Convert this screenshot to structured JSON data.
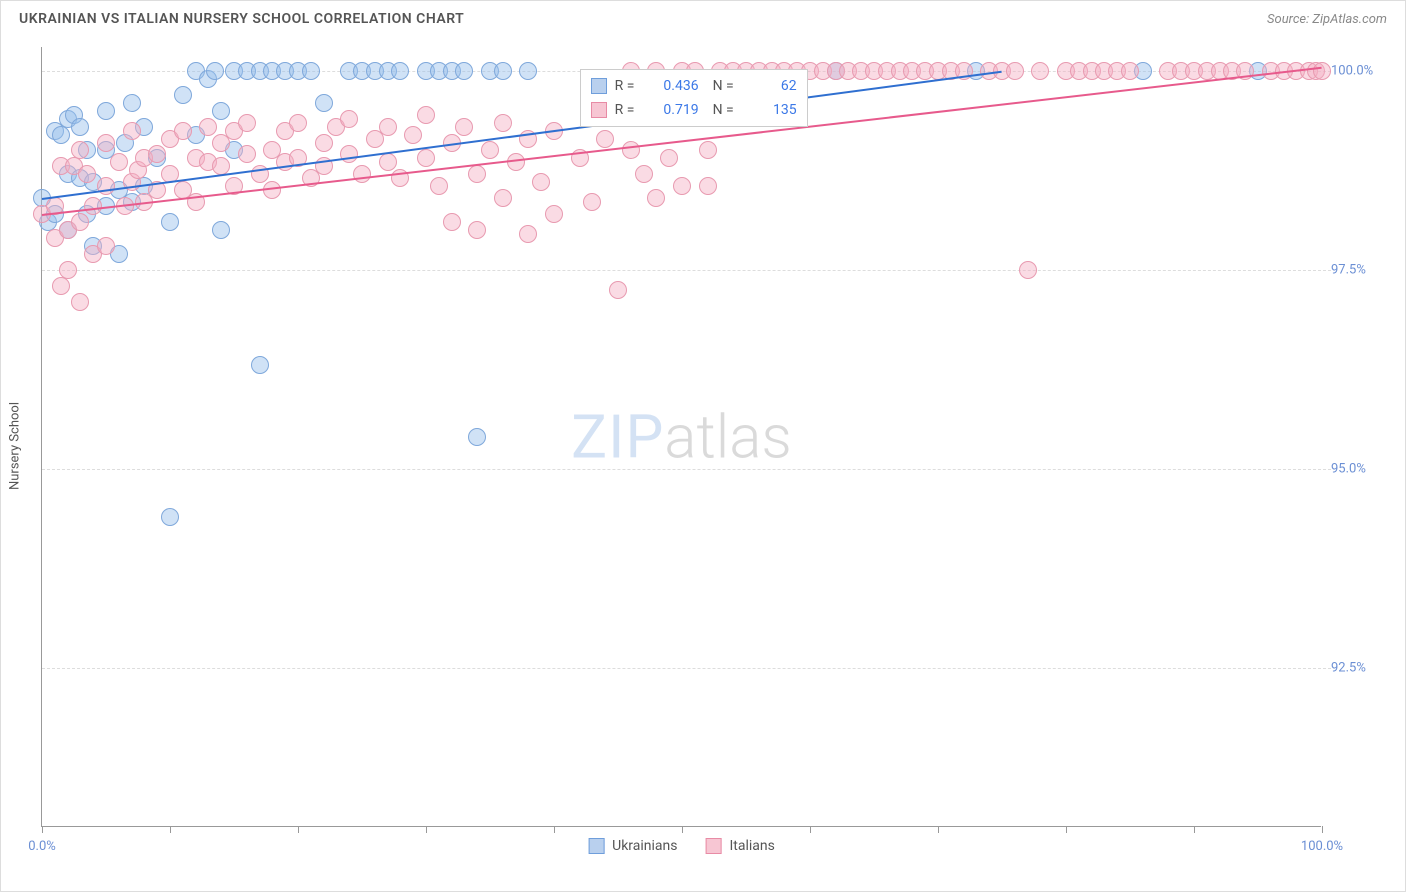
{
  "title": "UKRAINIAN VS ITALIAN NURSERY SCHOOL CORRELATION CHART",
  "source": "Source: ZipAtlas.com",
  "watermark": {
    "part1": "ZIP",
    "part2": "atlas"
  },
  "chart": {
    "type": "scatter",
    "background_color": "#ffffff",
    "grid_color": "#dddddd",
    "axis_color": "#999999",
    "label_color": "#555555",
    "tick_label_color": "#6b8fd4",
    "ylabel": "Nursery School",
    "title_fontsize": 14,
    "tick_fontsize": 13,
    "xlim": [
      0,
      100
    ],
    "ylim": [
      90.5,
      100.3
    ],
    "xticks": [
      0,
      10,
      20,
      30,
      40,
      50,
      60,
      70,
      80,
      90,
      100
    ],
    "xtick_labels": {
      "0": "0.0%",
      "100": "100.0%"
    },
    "yticks": [
      92.5,
      95.0,
      97.5,
      100.0
    ],
    "ytick_labels": [
      "92.5%",
      "95.0%",
      "97.5%",
      "100.0%"
    ],
    "marker_radius": 9,
    "marker_stroke_width": 1.5,
    "series": [
      {
        "name": "Ukrainians",
        "fill_color": "rgba(150,190,235,0.45)",
        "stroke_color": "#7fa8db",
        "swatch_fill": "#b9d0ee",
        "swatch_stroke": "#6f9edb",
        "trend_color": "#2f6fd0",
        "R": "0.436",
        "N": "62",
        "trend": {
          "x1": 0,
          "y1": 98.4,
          "x2": 75,
          "y2": 100.0
        },
        "points": [
          [
            0,
            98.4
          ],
          [
            0.5,
            98.1
          ],
          [
            1,
            99.25
          ],
          [
            1,
            98.2
          ],
          [
            1.5,
            99.2
          ],
          [
            2,
            98.7
          ],
          [
            2,
            98.0
          ],
          [
            2,
            99.4
          ],
          [
            2.5,
            99.45
          ],
          [
            3,
            99.3
          ],
          [
            3,
            98.65
          ],
          [
            3.5,
            99.0
          ],
          [
            3.5,
            98.2
          ],
          [
            4,
            98.6
          ],
          [
            4,
            97.8
          ],
          [
            5,
            99.0
          ],
          [
            5,
            98.3
          ],
          [
            5,
            99.5
          ],
          [
            6,
            97.7
          ],
          [
            6,
            98.5
          ],
          [
            6.5,
            99.1
          ],
          [
            7,
            98.35
          ],
          [
            7,
            99.6
          ],
          [
            8,
            98.55
          ],
          [
            8,
            99.3
          ],
          [
            9,
            98.9
          ],
          [
            10,
            98.1
          ],
          [
            10,
            94.4
          ],
          [
            11,
            99.7
          ],
          [
            12,
            99.2
          ],
          [
            12,
            100.0
          ],
          [
            13,
            99.9
          ],
          [
            13.5,
            100.0
          ],
          [
            14,
            98.0
          ],
          [
            14,
            99.5
          ],
          [
            15,
            100.0
          ],
          [
            15,
            99.0
          ],
          [
            16,
            100.0
          ],
          [
            17,
            100.0
          ],
          [
            17,
            96.3
          ],
          [
            18,
            100.0
          ],
          [
            19,
            100.0
          ],
          [
            20,
            100.0
          ],
          [
            21,
            100.0
          ],
          [
            22,
            99.6
          ],
          [
            24,
            100.0
          ],
          [
            25,
            100.0
          ],
          [
            26,
            100.0
          ],
          [
            27,
            100.0
          ],
          [
            28,
            100.0
          ],
          [
            30,
            100.0
          ],
          [
            31,
            100.0
          ],
          [
            32,
            100.0
          ],
          [
            33,
            100
          ],
          [
            34,
            95.4
          ],
          [
            35,
            100.0
          ],
          [
            36,
            100.0
          ],
          [
            38,
            100.0
          ],
          [
            62,
            100.0
          ],
          [
            73,
            100.0
          ],
          [
            86,
            100.0
          ],
          [
            95,
            100.0
          ]
        ]
      },
      {
        "name": "Italians",
        "fill_color": "rgba(245,175,195,0.45)",
        "stroke_color": "#e89ab0",
        "swatch_fill": "#f7c6d3",
        "swatch_stroke": "#e88ba5",
        "trend_color": "#e75a8c",
        "R": "0.719",
        "N": "135",
        "trend": {
          "x1": 0,
          "y1": 98.2,
          "x2": 100,
          "y2": 100.05
        },
        "points": [
          [
            0,
            98.2
          ],
          [
            1,
            98.3
          ],
          [
            1,
            97.9
          ],
          [
            1.5,
            98.8
          ],
          [
            1.5,
            97.3
          ],
          [
            2,
            98.0
          ],
          [
            2,
            97.5
          ],
          [
            2.5,
            98.8
          ],
          [
            3,
            98.1
          ],
          [
            3,
            97.1
          ],
          [
            3,
            99.0
          ],
          [
            3.5,
            98.7
          ],
          [
            4,
            98.3
          ],
          [
            4,
            97.7
          ],
          [
            5,
            98.55
          ],
          [
            5,
            99.1
          ],
          [
            5,
            97.8
          ],
          [
            6,
            98.85
          ],
          [
            6.5,
            98.3
          ],
          [
            7,
            98.6
          ],
          [
            7,
            99.25
          ],
          [
            7.5,
            98.75
          ],
          [
            8,
            98.9
          ],
          [
            8,
            98.35
          ],
          [
            9,
            98.95
          ],
          [
            9,
            98.5
          ],
          [
            10,
            99.15
          ],
          [
            10,
            98.7
          ],
          [
            11,
            98.5
          ],
          [
            11,
            99.25
          ],
          [
            12,
            98.9
          ],
          [
            12,
            98.35
          ],
          [
            13,
            98.85
          ],
          [
            13,
            99.3
          ],
          [
            14,
            98.8
          ],
          [
            14,
            99.1
          ],
          [
            15,
            98.55
          ],
          [
            15,
            99.25
          ],
          [
            16,
            98.95
          ],
          [
            16,
            99.35
          ],
          [
            17,
            98.7
          ],
          [
            18,
            99.0
          ],
          [
            18,
            98.5
          ],
          [
            19,
            99.25
          ],
          [
            19,
            98.85
          ],
          [
            20,
            99.35
          ],
          [
            20,
            98.9
          ],
          [
            21,
            98.65
          ],
          [
            22,
            99.1
          ],
          [
            22,
            98.8
          ],
          [
            23,
            99.3
          ],
          [
            24,
            98.95
          ],
          [
            24,
            99.4
          ],
          [
            25,
            98.7
          ],
          [
            26,
            99.15
          ],
          [
            27,
            99.3
          ],
          [
            27,
            98.85
          ],
          [
            28,
            98.65
          ],
          [
            29,
            99.2
          ],
          [
            30,
            98.9
          ],
          [
            30,
            99.45
          ],
          [
            31,
            98.55
          ],
          [
            32,
            99.1
          ],
          [
            32,
            98.1
          ],
          [
            33,
            99.3
          ],
          [
            34,
            98.7
          ],
          [
            34,
            98.0
          ],
          [
            35,
            99.0
          ],
          [
            36,
            99.35
          ],
          [
            36,
            98.4
          ],
          [
            37,
            98.85
          ],
          [
            38,
            97.95
          ],
          [
            38,
            99.15
          ],
          [
            39,
            98.6
          ],
          [
            40,
            99.25
          ],
          [
            40,
            98.2
          ],
          [
            42,
            98.9
          ],
          [
            43,
            98.35
          ],
          [
            44,
            99.15
          ],
          [
            45,
            97.25
          ],
          [
            46,
            100.0
          ],
          [
            47,
            98.7
          ],
          [
            48,
            100.0
          ],
          [
            49,
            98.9
          ],
          [
            50,
            100.0
          ],
          [
            50,
            98.55
          ],
          [
            51,
            100.0
          ],
          [
            52,
            99.0
          ],
          [
            53,
            100.0
          ],
          [
            54,
            100.0
          ],
          [
            55,
            100.0
          ],
          [
            56,
            100.0
          ],
          [
            57,
            100.0
          ],
          [
            58,
            100.0
          ],
          [
            59,
            100.0
          ],
          [
            60,
            100.0
          ],
          [
            61,
            100.0
          ],
          [
            62,
            100.0
          ],
          [
            63,
            100.0
          ],
          [
            64,
            100.0
          ],
          [
            65,
            100.0
          ],
          [
            66,
            100.0
          ],
          [
            67,
            100.0
          ],
          [
            68,
            100.0
          ],
          [
            69,
            100.0
          ],
          [
            70,
            100.0
          ],
          [
            71,
            100.0
          ],
          [
            72,
            100.0
          ],
          [
            74,
            100.0
          ],
          [
            75,
            100.0
          ],
          [
            76,
            100.0
          ],
          [
            77,
            97.5
          ],
          [
            78,
            100.0
          ],
          [
            80,
            100.0
          ],
          [
            81,
            100.0
          ],
          [
            82,
            100.0
          ],
          [
            83,
            100.0
          ],
          [
            84,
            100.0
          ],
          [
            85,
            100.0
          ],
          [
            88,
            100.0
          ],
          [
            89,
            100.0
          ],
          [
            90,
            100.0
          ],
          [
            91,
            100.0
          ],
          [
            92,
            100.0
          ],
          [
            93,
            100.0
          ],
          [
            94,
            100.0
          ],
          [
            96,
            100.0
          ],
          [
            97,
            100.0
          ],
          [
            98,
            100.0
          ],
          [
            99,
            100.0
          ],
          [
            99.5,
            100.0
          ],
          [
            100,
            100.0
          ],
          [
            46,
            99.0
          ],
          [
            48,
            98.4
          ],
          [
            52,
            98.55
          ]
        ]
      }
    ],
    "legend_top": {
      "R_label": "R =",
      "N_label": "N ="
    },
    "legend_bottom_labels": [
      "Ukrainians",
      "Italians"
    ]
  }
}
